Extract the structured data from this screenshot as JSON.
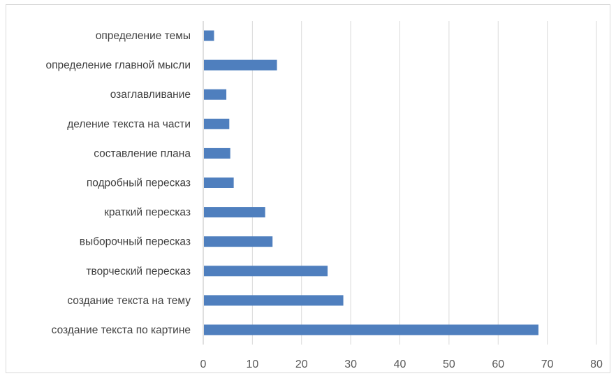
{
  "chart_data": {
    "type": "bar",
    "orientation": "horizontal",
    "categories": [
      "определение темы",
      "определение главной мысли",
      "озаглавливание",
      "деление текста на части",
      "составление плана",
      "подробный пересказ",
      "краткий пересказ",
      "выборочный пересказ",
      "творческий пересказ",
      "создание текста на тему",
      "создание текста по картине"
    ],
    "values": [
      2.2,
      15,
      4.7,
      5.3,
      5.5,
      6.2,
      12.6,
      14.1,
      25.3,
      28.5,
      68.2
    ],
    "xlim": [
      0,
      80
    ],
    "ticks": [
      "0",
      "10",
      "20",
      "30",
      "40",
      "50",
      "60",
      "70",
      "80"
    ],
    "title": "",
    "xlabel": "",
    "ylabel": "",
    "grid": "vertical",
    "legend": "none",
    "bar_color": "#4f7fbe",
    "grid_color": "#d9d9d9"
  }
}
